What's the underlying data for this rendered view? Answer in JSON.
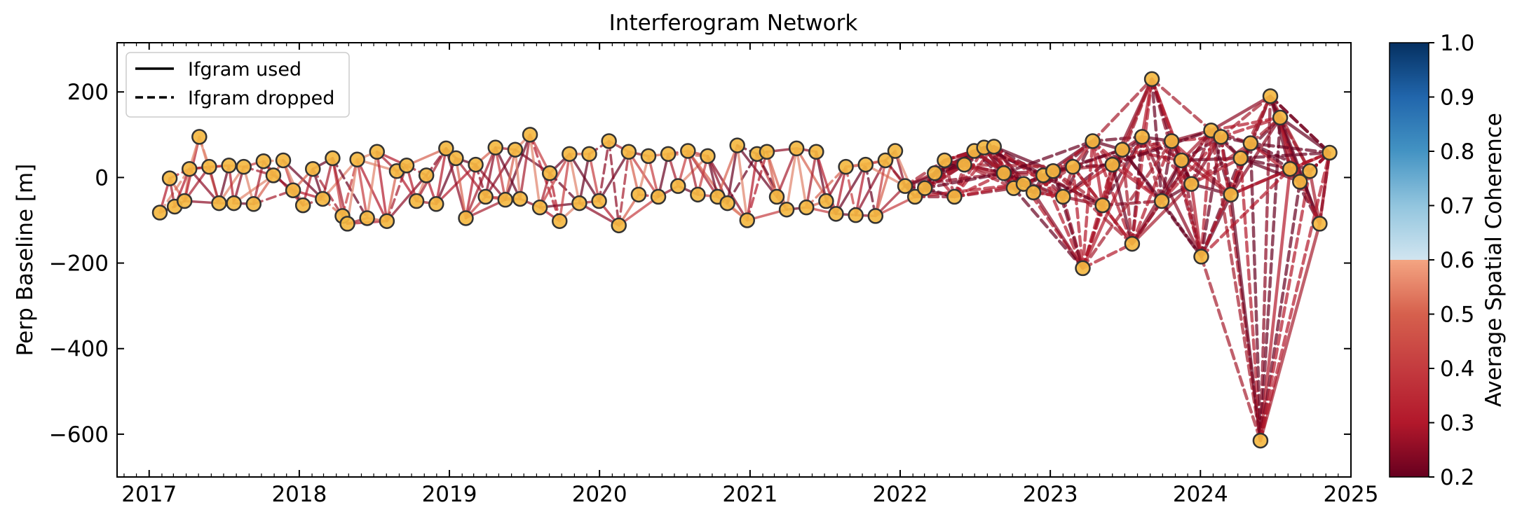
{
  "chart_data": {
    "type": "scatter",
    "title": "Interferogram Network",
    "ylabel": "Perp Baseline [m]",
    "xlabel": "",
    "xlim": [
      "2016-10-15",
      "2025-01-01"
    ],
    "ylim": [
      -700,
      315
    ],
    "x_ticks": [
      "2017",
      "2018",
      "2019",
      "2020",
      "2021",
      "2022",
      "2023",
      "2024",
      "2025"
    ],
    "y_ticks": [
      200,
      0,
      -200,
      -400,
      -600
    ],
    "y_tick_labels": [
      "200",
      "0",
      "−200",
      "−400",
      "−600"
    ],
    "legend": {
      "placement": "upper-left",
      "entries": [
        {
          "label": "Ifgram used",
          "style": "solid"
        },
        {
          "label": "Ifgram dropped",
          "style": "dashed"
        }
      ]
    },
    "colorbar": {
      "label": "Average Spatial Coherence",
      "range": [
        0.2,
        1.0
      ],
      "ticks": [
        "1.0",
        "0.9",
        "0.8",
        "0.7",
        "0.6",
        "0.5",
        "0.4",
        "0.3",
        "0.2"
      ],
      "colormap": "RdBu",
      "upper_limit_shown": 0.7
    },
    "acquisitions": [
      {
        "date": "2017-01-27",
        "bperp": -82
      },
      {
        "date": "2017-02-20",
        "bperp": -2
      },
      {
        "date": "2017-03-04",
        "bperp": -68
      },
      {
        "date": "2017-03-28",
        "bperp": -55
      },
      {
        "date": "2017-04-09",
        "bperp": 20
      },
      {
        "date": "2017-05-03",
        "bperp": 95
      },
      {
        "date": "2017-05-27",
        "bperp": 25
      },
      {
        "date": "2017-06-20",
        "bperp": -60
      },
      {
        "date": "2017-07-14",
        "bperp": 28
      },
      {
        "date": "2017-07-26",
        "bperp": -60
      },
      {
        "date": "2017-08-19",
        "bperp": 25
      },
      {
        "date": "2017-09-12",
        "bperp": -62
      },
      {
        "date": "2017-10-06",
        "bperp": 38
      },
      {
        "date": "2017-10-30",
        "bperp": 5
      },
      {
        "date": "2017-11-23",
        "bperp": 40
      },
      {
        "date": "2017-12-17",
        "bperp": -30
      },
      {
        "date": "2018-01-10",
        "bperp": -65
      },
      {
        "date": "2018-02-03",
        "bperp": 20
      },
      {
        "date": "2018-02-27",
        "bperp": -50
      },
      {
        "date": "2018-03-23",
        "bperp": 45
      },
      {
        "date": "2018-04-16",
        "bperp": -90
      },
      {
        "date": "2018-04-28",
        "bperp": -108
      },
      {
        "date": "2018-05-22",
        "bperp": 42
      },
      {
        "date": "2018-06-15",
        "bperp": -95
      },
      {
        "date": "2018-07-09",
        "bperp": 60
      },
      {
        "date": "2018-08-02",
        "bperp": -102
      },
      {
        "date": "2018-08-26",
        "bperp": 15
      },
      {
        "date": "2018-09-19",
        "bperp": 28
      },
      {
        "date": "2018-10-13",
        "bperp": -55
      },
      {
        "date": "2018-11-06",
        "bperp": 5
      },
      {
        "date": "2018-11-30",
        "bperp": -62
      },
      {
        "date": "2018-12-24",
        "bperp": 68
      },
      {
        "date": "2019-01-17",
        "bperp": 45
      },
      {
        "date": "2019-02-10",
        "bperp": -95
      },
      {
        "date": "2019-03-06",
        "bperp": 30
      },
      {
        "date": "2019-03-30",
        "bperp": -45
      },
      {
        "date": "2019-04-23",
        "bperp": 70
      },
      {
        "date": "2019-05-17",
        "bperp": -52
      },
      {
        "date": "2019-06-10",
        "bperp": 65
      },
      {
        "date": "2019-06-22",
        "bperp": -50
      },
      {
        "date": "2019-07-16",
        "bperp": 100
      },
      {
        "date": "2019-08-09",
        "bperp": -70
      },
      {
        "date": "2019-09-02",
        "bperp": 10
      },
      {
        "date": "2019-09-26",
        "bperp": -102
      },
      {
        "date": "2019-10-20",
        "bperp": 55
      },
      {
        "date": "2019-11-13",
        "bperp": -60
      },
      {
        "date": "2019-12-07",
        "bperp": 55
      },
      {
        "date": "2019-12-31",
        "bperp": -55
      },
      {
        "date": "2020-01-24",
        "bperp": 85
      },
      {
        "date": "2020-02-17",
        "bperp": -112
      },
      {
        "date": "2020-03-12",
        "bperp": 60
      },
      {
        "date": "2020-04-05",
        "bperp": -40
      },
      {
        "date": "2020-04-29",
        "bperp": 50
      },
      {
        "date": "2020-05-23",
        "bperp": -45
      },
      {
        "date": "2020-06-16",
        "bperp": 55
      },
      {
        "date": "2020-07-10",
        "bperp": -20
      },
      {
        "date": "2020-08-03",
        "bperp": 62
      },
      {
        "date": "2020-08-27",
        "bperp": -40
      },
      {
        "date": "2020-09-20",
        "bperp": 50
      },
      {
        "date": "2020-10-14",
        "bperp": -45
      },
      {
        "date": "2020-11-07",
        "bperp": -60
      },
      {
        "date": "2020-12-01",
        "bperp": 75
      },
      {
        "date": "2020-12-25",
        "bperp": -100
      },
      {
        "date": "2021-01-18",
        "bperp": 55
      },
      {
        "date": "2021-02-11",
        "bperp": 60
      },
      {
        "date": "2021-03-07",
        "bperp": -45
      },
      {
        "date": "2021-03-31",
        "bperp": -75
      },
      {
        "date": "2021-04-24",
        "bperp": 68
      },
      {
        "date": "2021-05-18",
        "bperp": -70
      },
      {
        "date": "2021-06-11",
        "bperp": 60
      },
      {
        "date": "2021-07-05",
        "bperp": -55
      },
      {
        "date": "2021-07-29",
        "bperp": -85
      },
      {
        "date": "2021-08-22",
        "bperp": 25
      },
      {
        "date": "2021-09-15",
        "bperp": -88
      },
      {
        "date": "2021-10-09",
        "bperp": 30
      },
      {
        "date": "2021-11-02",
        "bperp": -90
      },
      {
        "date": "2021-11-26",
        "bperp": 40
      },
      {
        "date": "2021-12-20",
        "bperp": 62
      },
      {
        "date": "2022-01-13",
        "bperp": -20
      },
      {
        "date": "2022-02-06",
        "bperp": -45
      },
      {
        "date": "2022-03-02",
        "bperp": -25
      },
      {
        "date": "2022-03-26",
        "bperp": 10
      },
      {
        "date": "2022-04-19",
        "bperp": 40
      },
      {
        "date": "2022-05-13",
        "bperp": -45
      },
      {
        "date": "2022-06-06",
        "bperp": 30
      },
      {
        "date": "2022-06-30",
        "bperp": 62
      },
      {
        "date": "2022-07-24",
        "bperp": 70
      },
      {
        "date": "2022-08-17",
        "bperp": 72
      },
      {
        "date": "2022-09-10",
        "bperp": 10
      },
      {
        "date": "2022-10-04",
        "bperp": -25
      },
      {
        "date": "2022-10-28",
        "bperp": -15
      },
      {
        "date": "2022-11-21",
        "bperp": -35
      },
      {
        "date": "2022-12-15",
        "bperp": 5
      },
      {
        "date": "2023-01-08",
        "bperp": 15
      },
      {
        "date": "2023-02-01",
        "bperp": -45
      },
      {
        "date": "2023-02-25",
        "bperp": 25
      },
      {
        "date": "2023-03-21",
        "bperp": -212
      },
      {
        "date": "2023-04-14",
        "bperp": 85
      },
      {
        "date": "2023-05-08",
        "bperp": -65
      },
      {
        "date": "2023-06-01",
        "bperp": 30
      },
      {
        "date": "2023-06-25",
        "bperp": 65
      },
      {
        "date": "2023-07-19",
        "bperp": -155
      },
      {
        "date": "2023-08-12",
        "bperp": 95
      },
      {
        "date": "2023-09-05",
        "bperp": 230
      },
      {
        "date": "2023-09-29",
        "bperp": -55
      },
      {
        "date": "2023-10-23",
        "bperp": 85
      },
      {
        "date": "2023-11-16",
        "bperp": 40
      },
      {
        "date": "2023-12-10",
        "bperp": -15
      },
      {
        "date": "2024-01-03",
        "bperp": -185
      },
      {
        "date": "2024-01-27",
        "bperp": 110
      },
      {
        "date": "2024-02-20",
        "bperp": 95
      },
      {
        "date": "2024-03-15",
        "bperp": -40
      },
      {
        "date": "2024-04-08",
        "bperp": 45
      },
      {
        "date": "2024-05-02",
        "bperp": 80
      },
      {
        "date": "2024-05-26",
        "bperp": -615
      },
      {
        "date": "2024-06-19",
        "bperp": 190
      },
      {
        "date": "2024-07-13",
        "bperp": 140
      },
      {
        "date": "2024-08-06",
        "bperp": 20
      },
      {
        "date": "2024-08-30",
        "bperp": -10
      },
      {
        "date": "2024-09-23",
        "bperp": 15
      },
      {
        "date": "2024-10-17",
        "bperp": -108
      },
      {
        "date": "2024-11-10",
        "bperp": 58
      }
    ]
  }
}
